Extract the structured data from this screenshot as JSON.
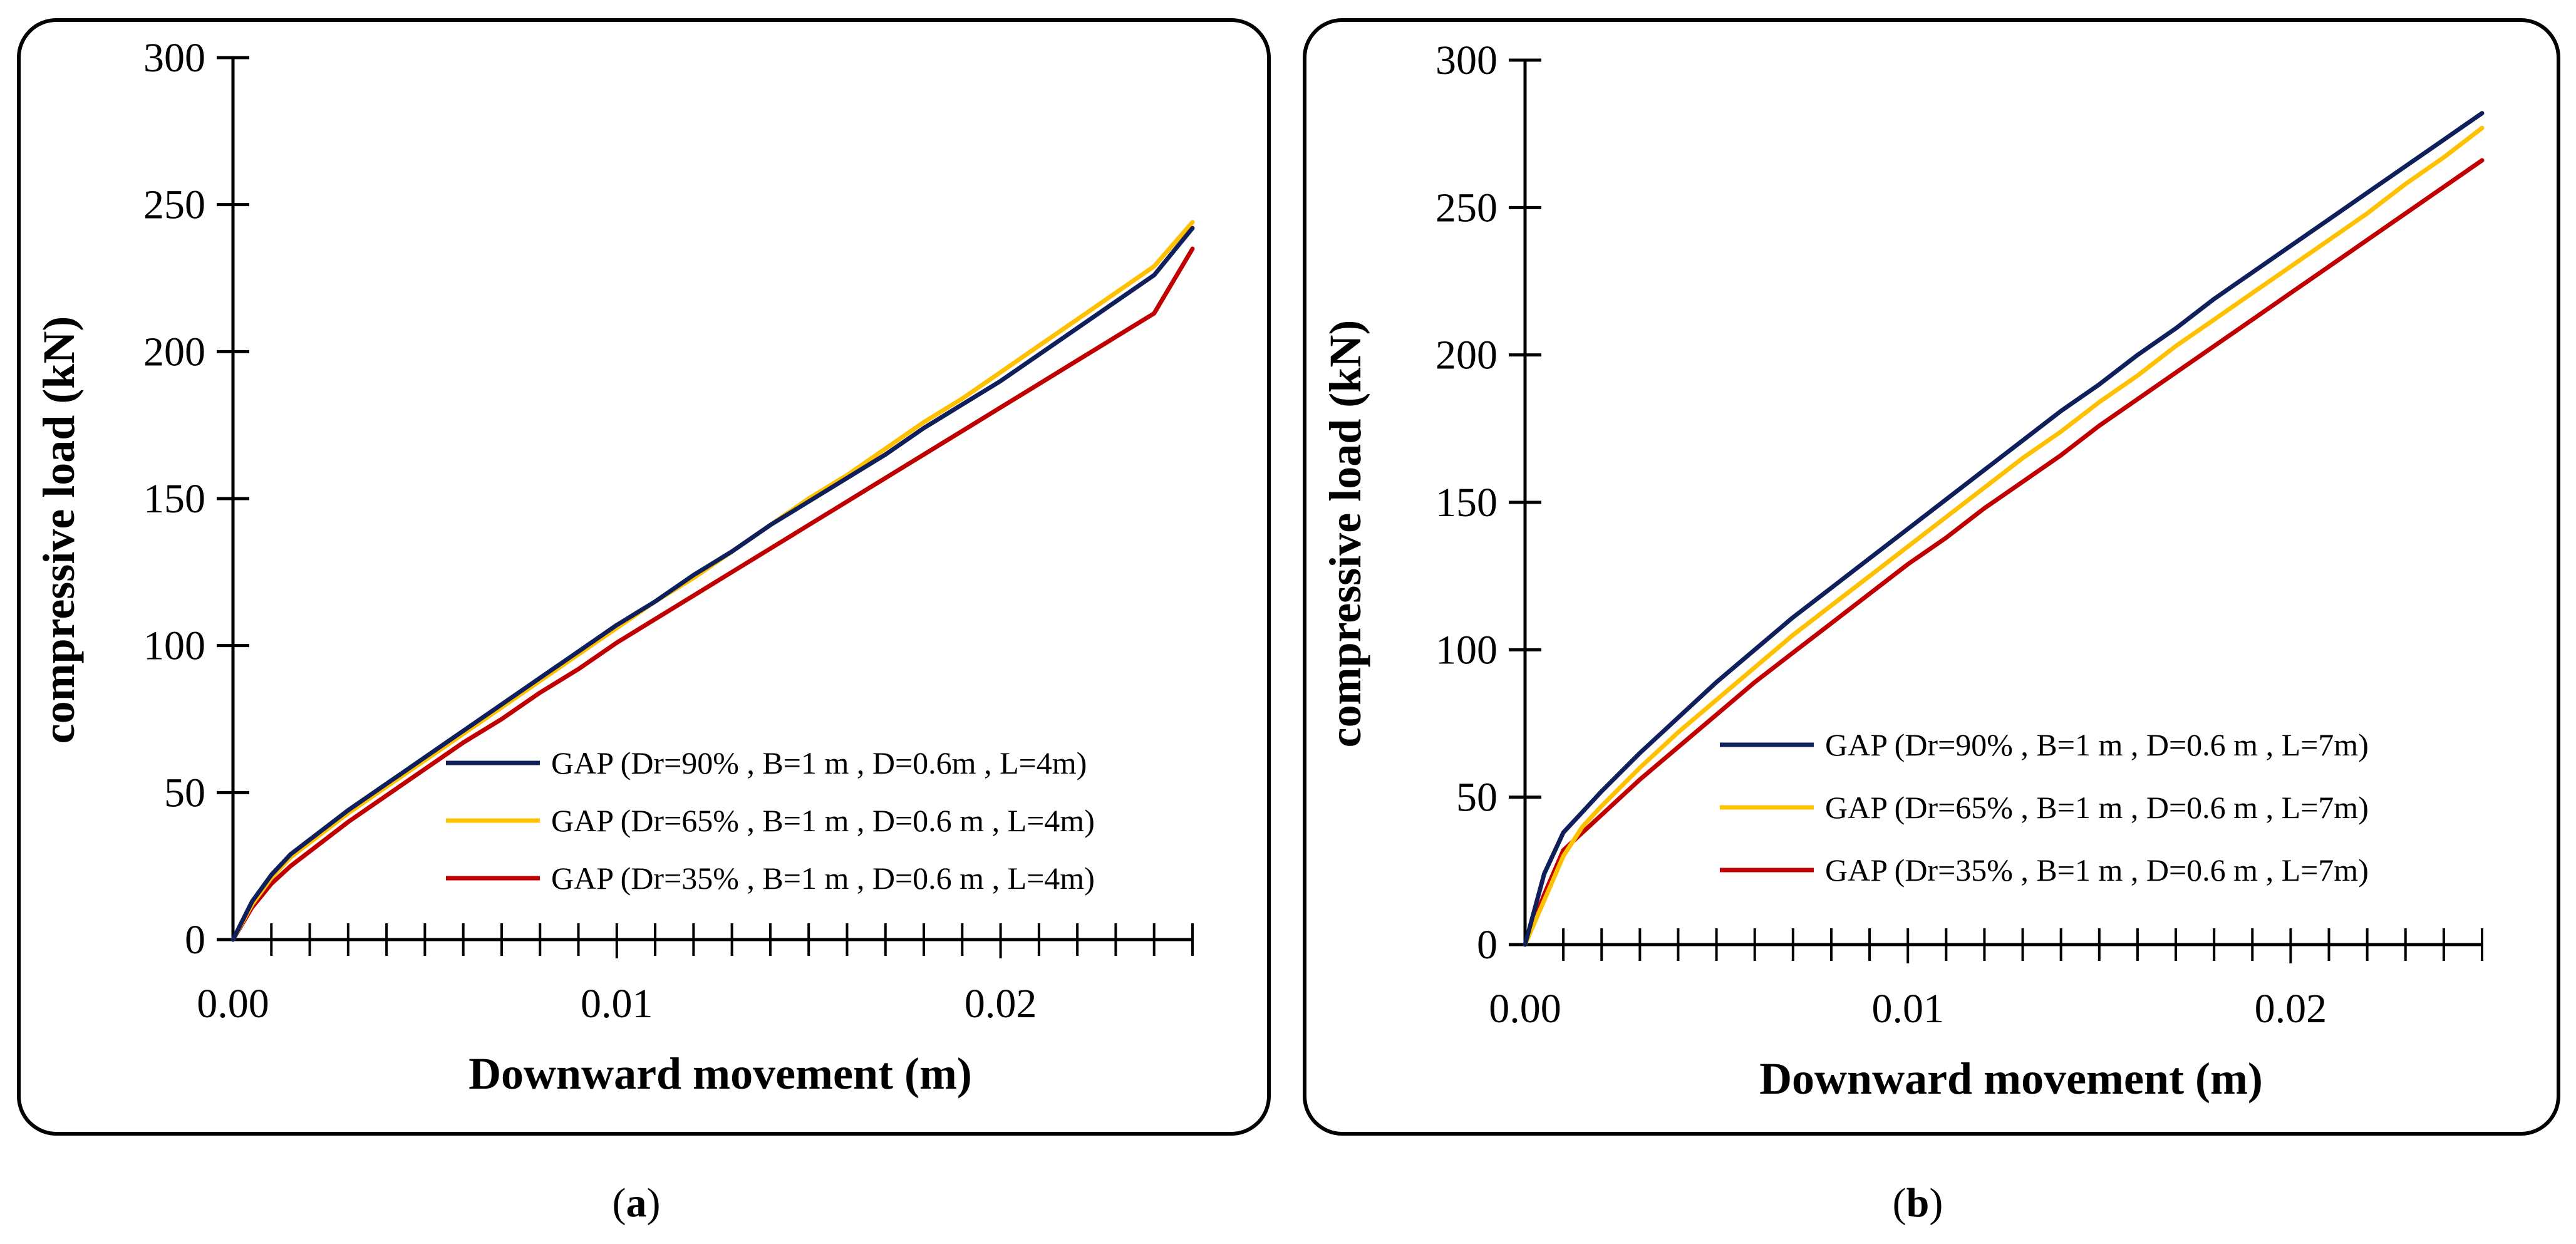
{
  "chart_data": [
    {
      "type": "line",
      "panel_label": "a",
      "xlabel": "Downward movement (m)",
      "ylabel": "compressive load (kN)",
      "xlim": [
        0,
        0.025
      ],
      "ylim": [
        0,
        300
      ],
      "xticks": [
        0.0,
        0.01,
        0.02
      ],
      "xtick_labels": [
        "0.00",
        "0.01",
        "0.02"
      ],
      "yticks": [
        0,
        50,
        100,
        150,
        200,
        250,
        300
      ],
      "ytick_labels": [
        "0",
        "50",
        "100",
        "150",
        "200",
        "250",
        "300"
      ],
      "series": [
        {
          "name": "GAP (Dr=90% , B=1 m , D=0.6m , L=4m)",
          "color": "#0f1f5c",
          "x": [
            0,
            0.0005,
            0.001,
            0.0015,
            0.002,
            0.003,
            0.004,
            0.005,
            0.006,
            0.007,
            0.008,
            0.009,
            0.01,
            0.011,
            0.012,
            0.013,
            0.014,
            0.015,
            0.016,
            0.017,
            0.018,
            0.019,
            0.02,
            0.021,
            0.022,
            0.023,
            0.024,
            0.025
          ],
          "y": [
            0,
            13,
            22,
            29,
            34,
            44,
            53,
            62,
            71,
            80,
            89,
            98,
            107,
            115,
            124,
            132,
            141,
            149,
            157,
            165,
            174,
            182,
            190,
            199,
            208,
            217,
            226,
            242
          ]
        },
        {
          "name": "GAP (Dr=65% , B=1 m , D=0.6 m , L=4m)",
          "color": "#ffc000",
          "x": [
            0,
            0.0005,
            0.001,
            0.0015,
            0.002,
            0.003,
            0.004,
            0.005,
            0.006,
            0.007,
            0.008,
            0.009,
            0.01,
            0.011,
            0.012,
            0.013,
            0.014,
            0.015,
            0.016,
            0.017,
            0.018,
            0.019,
            0.02,
            0.021,
            0.022,
            0.023,
            0.024,
            0.025
          ],
          "y": [
            0,
            12,
            21,
            28,
            33,
            43,
            52,
            61,
            70,
            79,
            88,
            97,
            106,
            115,
            123,
            132,
            141,
            150,
            158,
            167,
            176,
            184,
            193,
            202,
            211,
            220,
            229,
            244
          ]
        },
        {
          "name": "GAP (Dr=35% , B=1 m , D=0.6 m , L=4m)",
          "color": "#c00000",
          "x": [
            0,
            0.0005,
            0.001,
            0.0015,
            0.002,
            0.003,
            0.004,
            0.005,
            0.006,
            0.007,
            0.008,
            0.009,
            0.01,
            0.011,
            0.012,
            0.013,
            0.014,
            0.015,
            0.016,
            0.017,
            0.018,
            0.019,
            0.02,
            0.021,
            0.022,
            0.023,
            0.024,
            0.025
          ],
          "y": [
            0,
            11,
            19,
            25,
            30,
            40,
            49,
            58,
            67,
            75,
            84,
            92,
            101,
            109,
            117,
            125,
            133,
            141,
            149,
            157,
            165,
            173,
            181,
            189,
            197,
            205,
            213,
            235
          ]
        }
      ]
    },
    {
      "type": "line",
      "panel_label": "b",
      "xlabel": "Downward movement (m)",
      "ylabel": "compressive load (kN)",
      "xlim": [
        0,
        0.025
      ],
      "ylim": [
        0,
        300
      ],
      "xticks": [
        0.0,
        0.01,
        0.02
      ],
      "xtick_labels": [
        "0.00",
        "0.01",
        "0.02"
      ],
      "yticks": [
        0,
        50,
        100,
        150,
        200,
        250,
        300
      ],
      "ytick_labels": [
        "0",
        "50",
        "100",
        "150",
        "200",
        "250",
        "300"
      ],
      "series": [
        {
          "name": "GAP (Dr=90% , B=1 m , D=0.6 m , L=7m)",
          "color": "#0f1f5c",
          "x": [
            0,
            0.0005,
            0.001,
            0.0015,
            0.002,
            0.003,
            0.004,
            0.005,
            0.006,
            0.007,
            0.008,
            0.009,
            0.01,
            0.011,
            0.012,
            0.013,
            0.014,
            0.015,
            0.016,
            0.017,
            0.018,
            0.019,
            0.02,
            0.021,
            0.022,
            0.023,
            0.024,
            0.025
          ],
          "y": [
            0,
            24,
            38,
            45,
            52,
            65,
            77,
            89,
            100,
            111,
            121,
            131,
            141,
            151,
            161,
            171,
            181,
            190,
            200,
            209,
            219,
            228,
            237,
            246,
            255,
            264,
            273,
            282
          ]
        },
        {
          "name": "GAP (Dr=65% , B=1 m , D=0.6 m , L=7m)",
          "color": "#ffc000",
          "x": [
            0,
            0.0005,
            0.001,
            0.0015,
            0.002,
            0.003,
            0.004,
            0.005,
            0.006,
            0.007,
            0.008,
            0.009,
            0.01,
            0.011,
            0.012,
            0.013,
            0.014,
            0.015,
            0.016,
            0.017,
            0.018,
            0.019,
            0.02,
            0.021,
            0.022,
            0.023,
            0.024,
            0.025
          ],
          "y": [
            0,
            15,
            30,
            40,
            47,
            60,
            72,
            83,
            94,
            105,
            115,
            125,
            135,
            145,
            155,
            165,
            174,
            184,
            193,
            203,
            212,
            221,
            230,
            239,
            248,
            258,
            267,
            277
          ]
        },
        {
          "name": "GAP (Dr=35% , B=1 m , D=0.6 m , L=7m)",
          "color": "#c00000",
          "x": [
            0,
            0.0005,
            0.001,
            0.0015,
            0.002,
            0.003,
            0.004,
            0.005,
            0.006,
            0.007,
            0.008,
            0.009,
            0.01,
            0.011,
            0.012,
            0.013,
            0.014,
            0.015,
            0.016,
            0.017,
            0.018,
            0.019,
            0.02,
            0.021,
            0.022,
            0.023,
            0.024,
            0.025
          ],
          "y": [
            0,
            17,
            32,
            38,
            44,
            56,
            67,
            78,
            89,
            99,
            109,
            119,
            129,
            138,
            148,
            157,
            166,
            176,
            185,
            194,
            203,
            212,
            221,
            230,
            239,
            248,
            257,
            266
          ]
        }
      ]
    }
  ]
}
